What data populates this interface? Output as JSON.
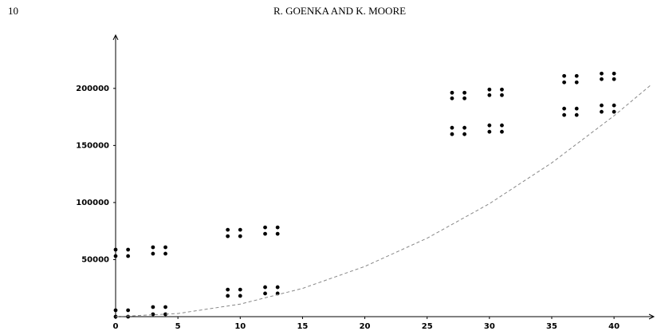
{
  "page_number": "10",
  "running_head": "R. GOENKA AND K. MOORE",
  "chart_data": {
    "type": "scatter",
    "xlim": [
      0,
      43
    ],
    "ylim": [
      0,
      246000
    ],
    "xticks": [
      0,
      5,
      10,
      15,
      20,
      25,
      30,
      35,
      40
    ],
    "yticks": [
      50000,
      100000,
      150000,
      200000
    ],
    "series": [
      {
        "color": "#000000",
        "x": [
          0,
          1,
          0,
          1,
          0,
          1,
          0,
          1,
          3,
          4,
          3,
          4,
          3,
          4,
          3,
          4,
          9,
          10,
          9,
          10,
          9,
          10,
          9,
          10,
          12,
          13,
          12,
          13,
          12,
          13,
          12,
          13,
          27,
          28,
          27,
          28,
          27,
          28,
          27,
          28,
          30,
          31,
          30,
          31,
          30,
          31,
          30,
          31,
          36,
          37,
          36,
          37,
          36,
          37,
          36,
          37,
          39,
          40,
          39,
          40,
          39,
          40,
          39,
          40
        ],
        "values": [
          58700,
          58700,
          53100,
          53100,
          5600,
          5600,
          0,
          0,
          60800,
          60800,
          55200,
          55200,
          8400,
          8400,
          2100,
          2100,
          76100,
          76100,
          70500,
          70500,
          23700,
          23700,
          18200,
          18200,
          78200,
          78200,
          72600,
          72600,
          25800,
          25800,
          20300,
          20300,
          196200,
          196200,
          191300,
          191300,
          165500,
          165500,
          159900,
          159900,
          199000,
          199000,
          194100,
          194100,
          167600,
          167600,
          162000,
          162000,
          210900,
          210900,
          205300,
          205300,
          182300,
          182300,
          176700,
          176700,
          213000,
          213000,
          208100,
          208100,
          185100,
          185100,
          179500,
          179500
        ]
      },
      {
        "type": "line",
        "color": "#888888",
        "dashed": true,
        "x": [
          0,
          5,
          10,
          15,
          20,
          25,
          30,
          35,
          40,
          43
        ],
        "values": [
          0,
          2750,
          11000,
          24750,
          44000,
          68750,
          99000,
          134750,
          176000,
          203390
        ]
      }
    ]
  }
}
